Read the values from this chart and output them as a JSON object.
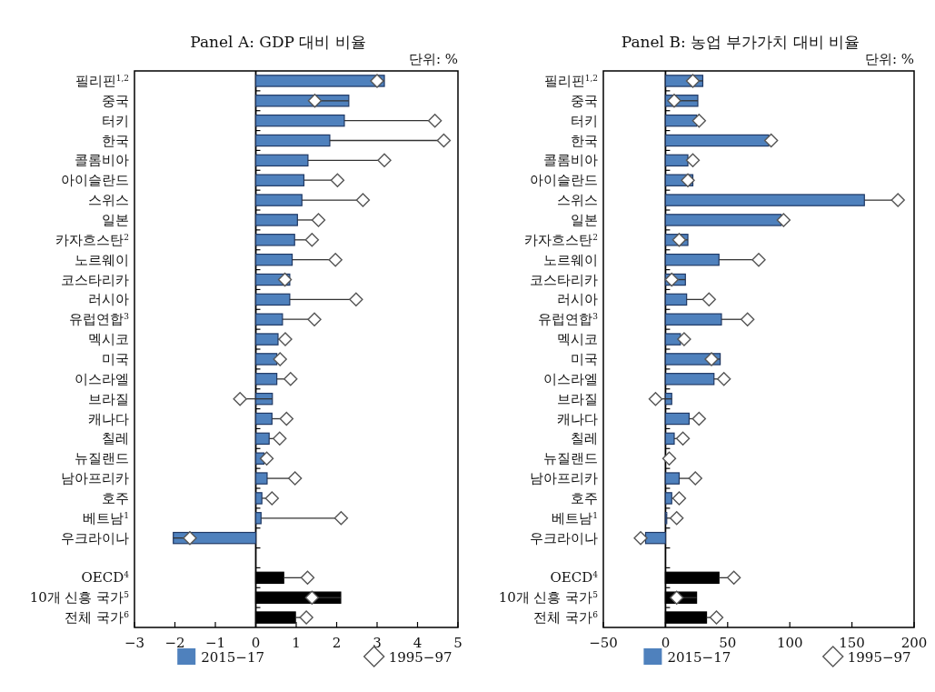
{
  "chart_data": [
    {
      "type": "bar",
      "orientation": "horizontal",
      "title": "Panel A: GDP 대비 비율",
      "annotations": [
        "단위: %"
      ],
      "marker": "diamond",
      "legend": "bottom",
      "xlim": [
        -3,
        5
      ],
      "xticks": [
        -3,
        -2,
        -1,
        0,
        1,
        2,
        3,
        4,
        5
      ],
      "categories": [
        "필리핀$^{1,2}$",
        "중국",
        "터키",
        "한국",
        "콜롬비아",
        "아이슬란드",
        "스위스",
        "일본",
        "카자흐스탄$^{2}$",
        "노르웨이",
        "코스타리카",
        "러시아",
        "유럽연합$^{3}$",
        "멕시코",
        "미국",
        "이스라엘",
        "브라질",
        "캐나다",
        "칠레",
        "뉴질랜드",
        "남아프리카",
        "호주",
        "베트남$^{1}$",
        "우크라이나",
        null,
        "OECD$^{4}$",
        "10개 신흥 국가$^{5}$",
        "전체 국가$^{6}$"
      ],
      "series": [
        {
          "name": "2015−17",
          "type": "bar",
          "colors": [
            "#4f81bd",
            "#4f81bd",
            "#4f81bd",
            "#4f81bd",
            "#4f81bd",
            "#4f81bd",
            "#4f81bd",
            "#4f81bd",
            "#4f81bd",
            "#4f81bd",
            "#4f81bd",
            "#4f81bd",
            "#4f81bd",
            "#4f81bd",
            "#4f81bd",
            "#4f81bd",
            "#4f81bd",
            "#4f81bd",
            "#4f81bd",
            "#4f81bd",
            "#4f81bd",
            "#4f81bd",
            "#4f81bd",
            "#4f81bd",
            null,
            "#000000",
            "#000000",
            "#000000"
          ],
          "values": [
            3.18,
            2.3,
            2.19,
            1.83,
            1.29,
            1.19,
            1.14,
            1.03,
            0.96,
            0.9,
            0.84,
            0.84,
            0.66,
            0.55,
            0.52,
            0.52,
            0.41,
            0.4,
            0.33,
            0.2,
            0.28,
            0.15,
            0.13,
            -2.04,
            null,
            0.69,
            2.1,
            0.98
          ]
        },
        {
          "name": "1995−97",
          "type": "scatter",
          "color": "#ffffff",
          "errors": [
            [
              3.0,
              3.18
            ],
            [
              1.46,
              2.3
            ],
            [
              2.19,
              4.43
            ],
            [
              1.83,
              4.65
            ],
            [
              1.29,
              3.18
            ],
            [
              1.19,
              2.02
            ],
            [
              1.14,
              2.65
            ],
            [
              1.03,
              1.55
            ],
            [
              0.96,
              1.39
            ],
            [
              0.9,
              1.97
            ],
            [
              0.72,
              0.84
            ],
            [
              0.84,
              2.48
            ],
            [
              0.66,
              1.45
            ],
            [
              0.55,
              0.73
            ],
            [
              0.52,
              0.6
            ],
            [
              0.52,
              0.86
            ],
            [
              -0.39,
              0.41
            ],
            [
              0.4,
              0.76
            ],
            [
              0.33,
              0.59
            ],
            [
              0.2,
              0.27
            ],
            [
              0.28,
              0.97
            ],
            [
              0.15,
              0.4
            ],
            [
              0.13,
              2.11
            ],
            [
              -2.04,
              -1.63
            ],
            null,
            [
              0.69,
              1.28
            ],
            [
              1.39,
              2.1
            ],
            [
              0.98,
              1.25
            ]
          ],
          "values": [
            3.0,
            1.46,
            4.43,
            4.65,
            3.18,
            2.02,
            2.65,
            1.55,
            1.39,
            1.97,
            0.72,
            2.48,
            1.45,
            0.73,
            0.6,
            0.86,
            -0.39,
            0.76,
            0.59,
            0.27,
            0.97,
            0.4,
            2.11,
            -1.63,
            null,
            1.28,
            1.39,
            1.25
          ]
        }
      ]
    },
    {
      "type": "bar",
      "orientation": "horizontal",
      "title": "Panel B: 농업 부가가치 대비 비율",
      "annotations": [
        "단위: %"
      ],
      "marker": "diamond",
      "legend": "bottom",
      "xlim": [
        -50,
        200
      ],
      "xticks": [
        -50,
        0,
        50,
        100,
        150,
        200
      ],
      "categories": [
        "필리핀$^{1,2}$",
        "중국",
        "터키",
        "한국",
        "콜롬비아",
        "아이슬란드",
        "스위스",
        "일본",
        "카자흐스탄$^{2}$",
        "노르웨이",
        "코스타리카",
        "러시아",
        "유럽연합$^{3}$",
        "멕시코",
        "미국",
        "이스라엘",
        "브라질",
        "캐나다",
        "칠레",
        "뉴질랜드",
        "남아프리카",
        "호주",
        "베트남$^{1}$",
        "우크라이나",
        null,
        "OECD$^{4}$",
        "10개 신흥 국가$^{5}$",
        "전체 국가$^{6}$"
      ],
      "series": [
        {
          "name": "2015−17",
          "type": "bar",
          "colors": [
            "#4f81bd",
            "#4f81bd",
            "#4f81bd",
            "#4f81bd",
            "#4f81bd",
            "#4f81bd",
            "#4f81bd",
            "#4f81bd",
            "#4f81bd",
            "#4f81bd",
            "#4f81bd",
            "#4f81bd",
            "#4f81bd",
            "#4f81bd",
            "#4f81bd",
            "#4f81bd",
            "#4f81bd",
            "#4f81bd",
            "#4f81bd",
            null,
            "#4f81bd",
            "#4f81bd",
            "#4f81bd",
            "#4f81bd",
            null,
            "#000000",
            "#000000",
            "#000000"
          ],
          "values": [
            30,
            26,
            25,
            83,
            18,
            22,
            160,
            93,
            18,
            43,
            16,
            17,
            45,
            12,
            44,
            39,
            5,
            19,
            7,
            null,
            11,
            5,
            1,
            -16,
            null,
            43,
            25,
            33
          ]
        },
        {
          "name": "1995−97",
          "type": "scatter",
          "color": "#ffffff",
          "errors": [
            [
              22,
              30
            ],
            [
              7,
              26
            ],
            [
              25,
              27
            ],
            [
              83,
              85
            ],
            [
              18,
              22
            ],
            [
              18,
              22
            ],
            [
              160,
              187
            ],
            [
              93,
              95
            ],
            [
              11,
              18
            ],
            [
              43,
              75
            ],
            [
              5,
              16
            ],
            [
              17,
              35
            ],
            [
              45,
              66
            ],
            [
              12,
              15
            ],
            [
              37,
              44
            ],
            [
              39,
              47
            ],
            [
              -8,
              5
            ],
            [
              19,
              27
            ],
            [
              7,
              14
            ],
            null,
            [
              11,
              24
            ],
            [
              5,
              11
            ],
            [
              1,
              9
            ],
            [
              -20,
              -16
            ],
            null,
            [
              43,
              55
            ],
            [
              9,
              25
            ],
            [
              33,
              41
            ]
          ],
          "values": [
            22,
            7,
            27,
            85,
            22,
            18,
            187,
            95,
            11,
            75,
            5,
            35,
            66,
            15,
            37,
            47,
            -8,
            27,
            14,
            3,
            24,
            11,
            9,
            -20,
            null,
            55,
            9,
            41
          ]
        }
      ]
    }
  ]
}
